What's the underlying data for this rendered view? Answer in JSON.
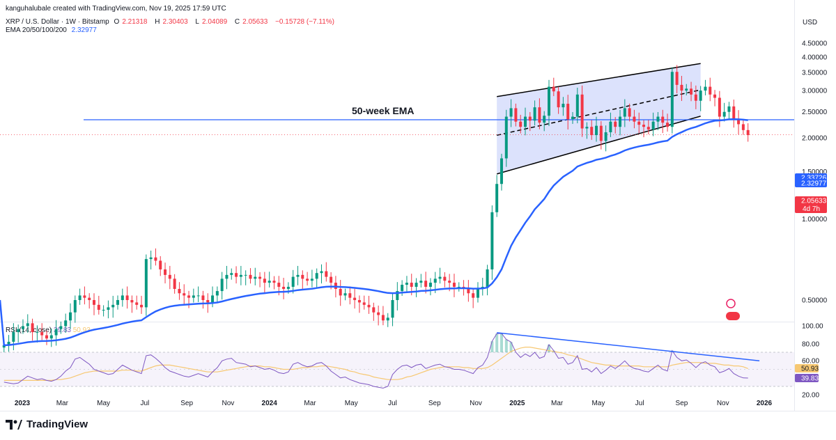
{
  "header": {
    "credit": "kanguhalubale created with TradingView.com, Nov 19, 2025 17:59 UTC",
    "symbol": "XRP / U.S. Dollar · 1W · Bitstamp",
    "ohlc": {
      "o_label": "O",
      "o": "2.21318",
      "h_label": "H",
      "h": "2.30403",
      "l_label": "L",
      "l": "2.04089",
      "c_label": "C",
      "c": "2.05633",
      "change": "−0.15728 (−7.11%)"
    },
    "ema_label": "EMA 20/50/100/200",
    "ema_value": "2.32977"
  },
  "currency": "USD",
  "rsi_label": {
    "name": "RSI (14, close)",
    "value": "39.83",
    "ma_value": "50.93"
  },
  "footer": {
    "brand": "TradingView"
  },
  "colors": {
    "up": "#089981",
    "down": "#f23645",
    "ema": "#2962ff",
    "channel_fill": "#d6ddfb",
    "rsi": "#7e57c2",
    "rsi_ma": "#f7c872"
  },
  "chart_data": [
    {
      "type": "candlestick",
      "title": "XRP / U.S. Dollar · 1W · Bitstamp",
      "y_scale": "log",
      "ylim": [
        0.3,
        4.9
      ],
      "y_ticks": [
        "4.50000",
        "4.00000",
        "3.50000",
        "3.00000",
        "2.50000",
        "2.00000",
        "1.50000",
        "1.00000",
        "0.50000"
      ],
      "x_ticks": [
        {
          "label": "2023",
          "date": "2023-01-01",
          "bold": true
        },
        {
          "label": "Mar",
          "date": "2023-03-01"
        },
        {
          "label": "May",
          "date": "2023-05-01"
        },
        {
          "label": "Jul",
          "date": "2023-07-01"
        },
        {
          "label": "Sep",
          "date": "2023-09-01"
        },
        {
          "label": "Nov",
          "date": "2023-11-01"
        },
        {
          "label": "2024",
          "date": "2024-01-01",
          "bold": true
        },
        {
          "label": "Mar",
          "date": "2024-03-01"
        },
        {
          "label": "May",
          "date": "2024-05-01"
        },
        {
          "label": "Jul",
          "date": "2024-07-01"
        },
        {
          "label": "Sep",
          "date": "2024-09-01"
        },
        {
          "label": "Nov",
          "date": "2024-11-01"
        },
        {
          "label": "2025",
          "date": "2025-01-01",
          "bold": true
        },
        {
          "label": "Mar",
          "date": "2025-03-01"
        },
        {
          "label": "May",
          "date": "2025-05-01"
        },
        {
          "label": "Jul",
          "date": "2025-07-01"
        },
        {
          "label": "Sep",
          "date": "2025-09-01"
        },
        {
          "label": "Nov",
          "date": "2025-11-01"
        },
        {
          "label": "2026",
          "date": "2026-01-01",
          "bold": true
        }
      ],
      "weekly_close": [
        0.34,
        0.35,
        0.38,
        0.39,
        0.4,
        0.41,
        0.38,
        0.38,
        0.37,
        0.36,
        0.37,
        0.39,
        0.4,
        0.42,
        0.45,
        0.5,
        0.52,
        0.51,
        0.5,
        0.48,
        0.46,
        0.46,
        0.47,
        0.48,
        0.5,
        0.52,
        0.5,
        0.49,
        0.48,
        0.47,
        0.71,
        0.72,
        0.7,
        0.65,
        0.62,
        0.6,
        0.55,
        0.53,
        0.52,
        0.51,
        0.52,
        0.52,
        0.5,
        0.49,
        0.52,
        0.54,
        0.6,
        0.62,
        0.63,
        0.61,
        0.62,
        0.62,
        0.6,
        0.61,
        0.6,
        0.58,
        0.59,
        0.58,
        0.56,
        0.55,
        0.56,
        0.61,
        0.62,
        0.6,
        0.59,
        0.6,
        0.63,
        0.64,
        0.61,
        0.58,
        0.55,
        0.52,
        0.53,
        0.51,
        0.5,
        0.49,
        0.48,
        0.47,
        0.45,
        0.44,
        0.42,
        0.43,
        0.5,
        0.54,
        0.57,
        0.58,
        0.56,
        0.58,
        0.59,
        0.56,
        0.58,
        0.6,
        0.61,
        0.59,
        0.58,
        0.56,
        0.56,
        0.55,
        0.53,
        0.51,
        0.55,
        0.56,
        0.65,
        1.06,
        1.35,
        1.68,
        2.4,
        2.58,
        2.3,
        2.2,
        2.4,
        2.32,
        2.6,
        2.28,
        2.42,
        3.1,
        2.98,
        2.6,
        2.68,
        2.35,
        2.4,
        2.9,
        2.17,
        2.2,
        2.05,
        2.22,
        1.95,
        2.1,
        2.3,
        2.2,
        2.4,
        2.58,
        2.4,
        2.3,
        2.24,
        2.2,
        2.15,
        2.3,
        2.4,
        2.28,
        2.2,
        3.52,
        3.15,
        3.0,
        3.05,
        2.9,
        2.75,
        3.0,
        3.1,
        2.9,
        2.82,
        2.4,
        2.5,
        2.62,
        2.35,
        2.25,
        2.14,
        2.05
      ],
      "ema_50w_end": 2.32977,
      "current_price": 2.05633,
      "price_badges": [
        {
          "value": "2.33726",
          "color": "#2962ff"
        },
        {
          "value": "2.32977",
          "color": "#2962ff"
        },
        {
          "value": "2.05633",
          "color": "#f23645",
          "sub": "4d 7h"
        }
      ],
      "annotation": "50-week EMA",
      "horizontal_line": 2.33726,
      "channel": {
        "upper": [
          {
            "date": "2024-12-02",
            "value": 2.85
          },
          {
            "date": "2025-09-29",
            "value": 3.78
          }
        ],
        "lower": [
          {
            "date": "2024-12-02",
            "value": 1.47
          },
          {
            "date": "2025-09-29",
            "value": 2.41
          }
        ]
      }
    },
    {
      "type": "line",
      "title": "RSI (14, close)",
      "ylim": [
        0,
        100
      ],
      "y_ticks": [
        "100.00",
        "80.00",
        "60.00",
        "20.00"
      ],
      "value_badges": [
        {
          "value": "50.93",
          "color": "#f7c872"
        },
        {
          "value": "39.83",
          "color": "#7e57c2"
        }
      ],
      "series": [
        {
          "values": [
            35,
            34,
            33,
            34,
            38,
            42,
            40,
            38,
            39,
            37,
            36,
            38,
            42,
            48,
            52,
            62,
            64,
            60,
            56,
            50,
            48,
            46,
            44,
            45,
            50,
            55,
            52,
            49,
            47,
            45,
            66,
            67,
            63,
            58,
            52,
            48,
            46,
            44,
            42,
            41,
            43,
            45,
            43,
            41,
            47,
            52,
            60,
            62,
            63,
            58,
            57,
            56,
            53,
            54,
            52,
            50,
            51,
            49,
            46,
            45,
            47,
            56,
            58,
            55,
            53,
            54,
            57,
            58,
            54,
            48,
            44,
            40,
            41,
            38,
            36,
            34,
            33,
            32,
            30,
            29,
            28,
            30,
            44,
            50,
            54,
            55,
            52,
            55,
            56,
            51,
            53,
            55,
            56,
            53,
            52,
            50,
            50,
            49,
            47,
            45,
            52,
            55,
            64,
            83,
            92,
            92,
            85,
            82,
            70,
            64,
            68,
            65,
            70,
            63,
            65,
            79,
            72,
            63,
            64,
            56,
            58,
            66,
            50,
            51,
            47,
            52,
            45,
            49,
            54,
            51,
            55,
            60,
            54,
            51,
            50,
            48,
            47,
            51,
            55,
            50,
            48,
            72,
            64,
            60,
            61,
            57,
            52,
            57,
            59,
            55,
            53,
            46,
            48,
            51,
            45,
            42,
            40,
            39.83
          ]
        },
        {
          "values": [
            37,
            37,
            37,
            37,
            37,
            37,
            37,
            37,
            37,
            37,
            37,
            38,
            38,
            39,
            40,
            42,
            44,
            46,
            47,
            48,
            48,
            48,
            48,
            48,
            48,
            49,
            49,
            49,
            48,
            48,
            50,
            52,
            54,
            55,
            55,
            55,
            54,
            53,
            52,
            51,
            50,
            49,
            48,
            47,
            47,
            47,
            48,
            49,
            50,
            51,
            52,
            53,
            54,
            54,
            54,
            53,
            53,
            52,
            51,
            50,
            50,
            50,
            51,
            52,
            52,
            53,
            53,
            54,
            54,
            53,
            52,
            51,
            50,
            48,
            47,
            45,
            44,
            43,
            41,
            40,
            39,
            38,
            38,
            38,
            39,
            41,
            42,
            44,
            46,
            48,
            50,
            51,
            52,
            53,
            53,
            53,
            53,
            52,
            52,
            51,
            51,
            51,
            52,
            55,
            59,
            63,
            67,
            71,
            73,
            75,
            76,
            76,
            75,
            74,
            73,
            72,
            71,
            70,
            69,
            67,
            66,
            64,
            62,
            60,
            58,
            57,
            56,
            55,
            55,
            54,
            54,
            54,
            54,
            54,
            54,
            53,
            53,
            53,
            53,
            53,
            53,
            55,
            56,
            57,
            58,
            58,
            58,
            58,
            57,
            57,
            57,
            56,
            55,
            55,
            54,
            54,
            53,
            50.93
          ]
        }
      ],
      "trendline": [
        {
          "date": "2024-12-02",
          "value": 93
        },
        {
          "date": "2025-12-29",
          "value": 60
        }
      ]
    }
  ]
}
